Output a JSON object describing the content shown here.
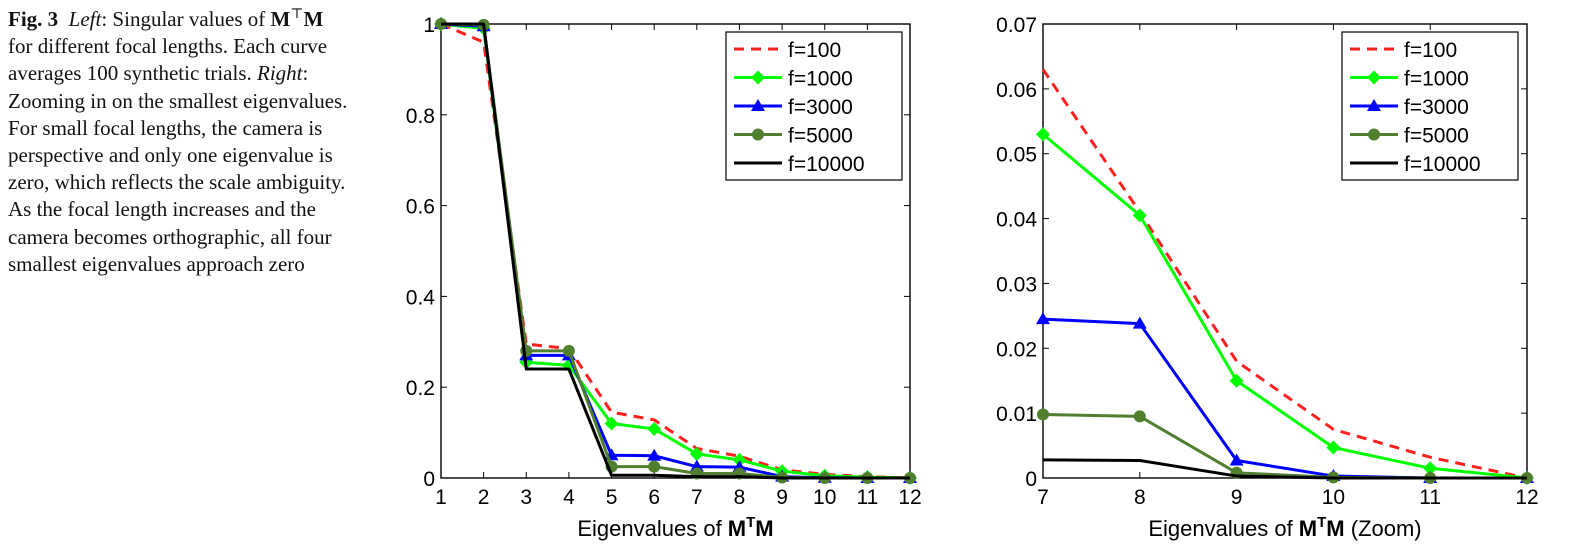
{
  "caption": {
    "fig": "Fig. 3",
    "left_label": "Left",
    "part1": ": Singular values of",
    "mat_m": "M",
    "mat_sup": "⊤",
    "mat_m2": "M",
    "part2": " for different focal lengths. Each curve averages 100 synthetic trials. ",
    "right_label": "Right",
    "part3": ": Zooming in on the smallest eigenvalues. For small focal lengths, the camera is perspective and only one eigenvalue is zero, which reflects the scale ambiguity. As the focal length increases and the camera becomes orthographic, all four smallest eigenvalues approach zero"
  },
  "colors": {
    "f100": "#ff2020",
    "f1000": "#00ff00",
    "f3000": "#0000ff",
    "f5000": "#4f7f2f",
    "f10000": "#000000"
  },
  "chart_data": [
    {
      "type": "line",
      "xlabel": "Eigenvalues of MᵀM",
      "ylabel": "",
      "xlim": [
        1,
        12
      ],
      "ylim": [
        0,
        1
      ],
      "x": [
        1,
        2,
        3,
        4,
        5,
        6,
        7,
        8,
        9,
        10,
        11,
        12
      ],
      "xticks": [
        "1",
        "2",
        "3",
        "4",
        "5",
        "6",
        "7",
        "8",
        "9",
        "10",
        "11",
        "12"
      ],
      "yticks": [
        "0",
        "0.2",
        "0.4",
        "0.6",
        "0.8",
        "1"
      ],
      "ytick_values": [
        0,
        0.2,
        0.4,
        0.6,
        0.8,
        1
      ],
      "legend_position": "top-right",
      "series": [
        {
          "name": "f=100",
          "key": "f100",
          "marker": "none",
          "dash": "dashed",
          "values": [
            1,
            0.96,
            0.295,
            0.285,
            0.145,
            0.128,
            0.065,
            0.048,
            0.018,
            0.008,
            0.003,
            0.0
          ]
        },
        {
          "name": "f=1000",
          "key": "f1000",
          "marker": "diamond",
          "dash": "solid",
          "values": [
            1,
            0.99,
            0.255,
            0.248,
            0.12,
            0.108,
            0.053,
            0.04,
            0.015,
            0.005,
            0.002,
            0.0
          ]
        },
        {
          "name": "f=3000",
          "key": "f3000",
          "marker": "triangle",
          "dash": "solid",
          "values": [
            1,
            0.995,
            0.27,
            0.27,
            0.05,
            0.049,
            0.025,
            0.024,
            0.003,
            0.0005,
            0.0,
            0.0
          ]
        },
        {
          "name": "f=5000",
          "key": "f5000",
          "marker": "circle",
          "dash": "solid",
          "values": [
            1,
            0.998,
            0.28,
            0.28,
            0.025,
            0.025,
            0.01,
            0.01,
            0.001,
            0.0,
            0.0,
            0.0
          ]
        },
        {
          "name": "f=10000",
          "key": "f10000",
          "marker": "none",
          "dash": "solid",
          "values": [
            1,
            1,
            0.24,
            0.24,
            0.006,
            0.006,
            0.003,
            0.003,
            0.0,
            0.0,
            0.0,
            0.0
          ]
        }
      ]
    },
    {
      "type": "line",
      "xlabel": "Eigenvalues of MᵀM (Zoom)",
      "ylabel": "",
      "xlim": [
        7,
        12
      ],
      "ylim": [
        0,
        0.07
      ],
      "x": [
        7,
        8,
        9,
        10,
        11,
        12
      ],
      "xticks": [
        "7",
        "8",
        "9",
        "10",
        "11",
        "12"
      ],
      "yticks": [
        "0",
        "0.01",
        "0.02",
        "0.03",
        "0.04",
        "0.05",
        "0.06",
        "0.07"
      ],
      "ytick_values": [
        0,
        0.01,
        0.02,
        0.03,
        0.04,
        0.05,
        0.06,
        0.07
      ],
      "legend_position": "top-right",
      "series": [
        {
          "name": "f=100",
          "key": "f100",
          "marker": "none",
          "dash": "dashed",
          "values": [
            0.063,
            0.041,
            0.018,
            0.0075,
            0.0032,
            0.0
          ]
        },
        {
          "name": "f=1000",
          "key": "f1000",
          "marker": "diamond",
          "dash": "solid",
          "values": [
            0.053,
            0.0405,
            0.015,
            0.0047,
            0.0015,
            0.0
          ]
        },
        {
          "name": "f=3000",
          "key": "f3000",
          "marker": "triangle",
          "dash": "solid",
          "values": [
            0.0245,
            0.0238,
            0.0027,
            0.0003,
            0.0,
            0.0
          ]
        },
        {
          "name": "f=5000",
          "key": "f5000",
          "marker": "circle",
          "dash": "solid",
          "values": [
            0.0098,
            0.0095,
            0.0008,
            0.0001,
            0.0,
            0.0
          ]
        },
        {
          "name": "f=10000",
          "key": "f10000",
          "marker": "none",
          "dash": "solid",
          "values": [
            0.0028,
            0.0027,
            0.0003,
            0.0,
            0.0,
            0.0
          ]
        }
      ]
    }
  ]
}
